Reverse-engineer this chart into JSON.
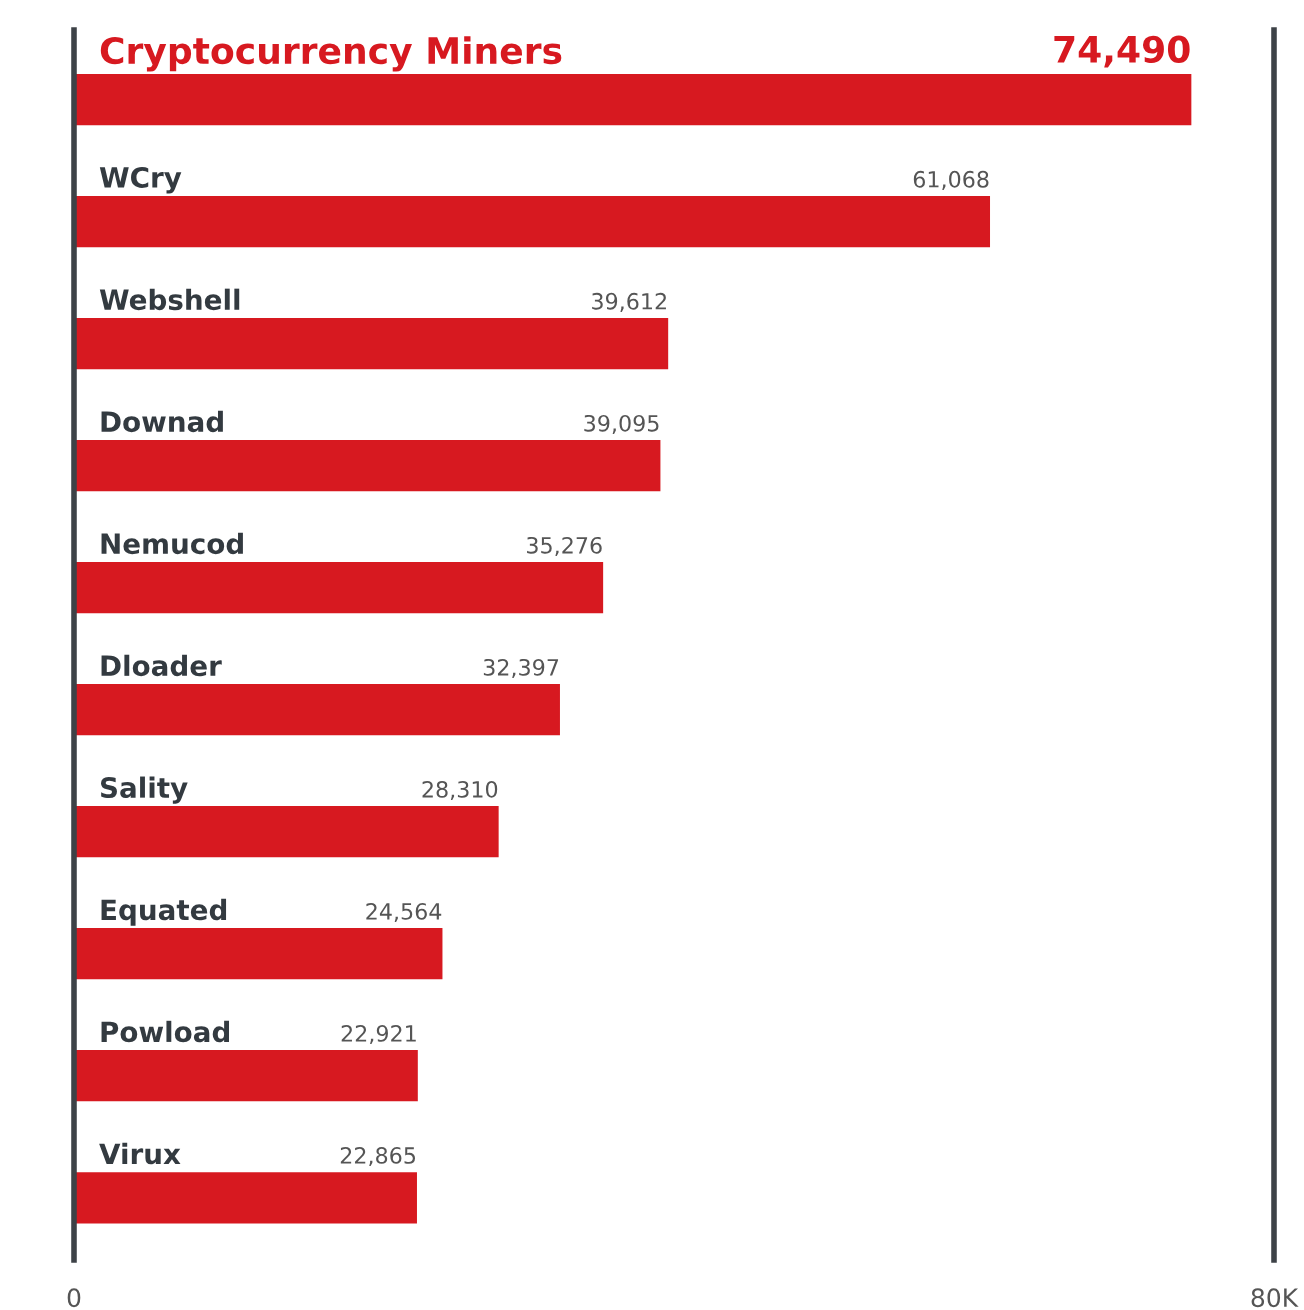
{
  "chart_data": {
    "type": "bar",
    "orientation": "horizontal",
    "categories": [
      "Cryptocurrency Miners",
      "WCry",
      "Webshell",
      "Downad",
      "Nemucod",
      "Dloader",
      "Sality",
      "Equated",
      "Powload",
      "Virux"
    ],
    "values": [
      74490,
      61068,
      39612,
      39095,
      35276,
      32397,
      28310,
      24564,
      22921,
      22865
    ],
    "value_labels": [
      "74,490",
      "61,068",
      "39,612",
      "39,095",
      "35,276",
      "32,397",
      "28,310",
      "24,564",
      "22,921",
      "22,865"
    ],
    "color": "#d71920",
    "xlim": [
      0,
      80000
    ],
    "xticks": [
      0,
      {
        "value": 80000,
        "label": "80K"
      }
    ]
  }
}
